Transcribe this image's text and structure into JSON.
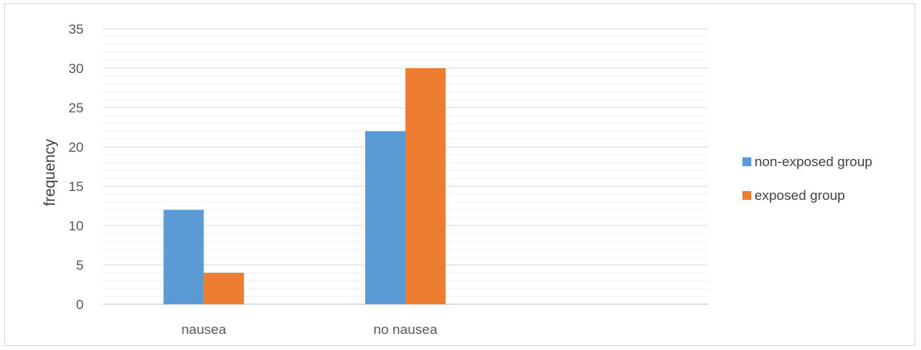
{
  "chart_data": {
    "type": "bar",
    "title": "",
    "xlabel": "",
    "ylabel": "frequency",
    "categories": [
      "nausea",
      "no nausea",
      ""
    ],
    "series": [
      {
        "name": "non-exposed group",
        "values": [
          12,
          22,
          null
        ],
        "color": "#5b9bd5"
      },
      {
        "name": "exposed group",
        "values": [
          4,
          30,
          null
        ],
        "color": "#ed7d31"
      }
    ],
    "ylim": [
      0,
      35
    ],
    "yticks": [
      0,
      5,
      10,
      15,
      20,
      25,
      30,
      35
    ],
    "major_grid": true,
    "minor_grid": true,
    "legend_position": "right"
  }
}
